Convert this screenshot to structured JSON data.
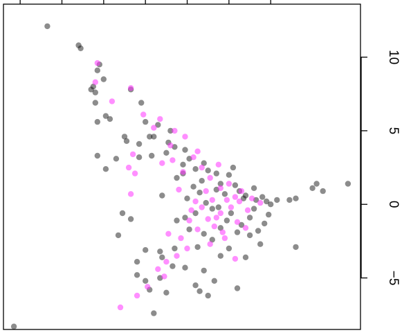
{
  "chart_data": {
    "type": "scatter",
    "title": "",
    "xlabel": "",
    "ylabel": "",
    "xlim": [
      -12.8,
      4.3
    ],
    "ylim": [
      -8.5,
      13.6
    ],
    "x_ticks_unlabeled": [
      -12,
      -10,
      -8,
      -6,
      -4,
      -2,
      0
    ],
    "y_ticks": [
      -5,
      0,
      5,
      10
    ],
    "y_tick_labels": [
      "−5",
      "0",
      "5",
      "10"
    ],
    "grid": false,
    "legend": "none",
    "series": [
      {
        "color": "#000000",
        "opacity": 0.45,
        "points": [
          [
            -10.7,
            12.1
          ],
          [
            -9.2,
            10.8
          ],
          [
            -9.1,
            10.6
          ],
          [
            -8.2,
            9.5
          ],
          [
            -8.0,
            8.5
          ],
          [
            -8.3,
            9.1
          ],
          [
            -8.5,
            8.0
          ],
          [
            -8.6,
            7.8
          ],
          [
            -8.4,
            7.6
          ],
          [
            -6.7,
            7.8
          ],
          [
            -6.2,
            6.9
          ],
          [
            -8.4,
            6.9
          ],
          [
            -7.9,
            6.0
          ],
          [
            -8.3,
            5.6
          ],
          [
            -7.7,
            5.8
          ],
          [
            -6.0,
            5.6
          ],
          [
            -5.4,
            5.4
          ],
          [
            -4.8,
            5.0
          ],
          [
            -5.8,
            4.6
          ],
          [
            -6.9,
            4.3
          ],
          [
            -7.0,
            4.6
          ],
          [
            -5.6,
            4.6
          ],
          [
            -6.3,
            4.1
          ],
          [
            -4.9,
            4.2
          ],
          [
            -4.6,
            3.9
          ],
          [
            -4.1,
            3.7
          ],
          [
            -5.0,
            3.5
          ],
          [
            -5.7,
            3.3
          ],
          [
            -6.3,
            3.2
          ],
          [
            -7.4,
            3.1
          ],
          [
            -7.9,
            2.4
          ],
          [
            -8.3,
            3.3
          ],
          [
            -4.2,
            2.7
          ],
          [
            -3.6,
            2.4
          ],
          [
            -3.0,
            2.3
          ],
          [
            -4.5,
            1.8
          ],
          [
            -3.3,
            1.6
          ],
          [
            -2.4,
            1.4
          ],
          [
            -2.0,
            2.0
          ],
          [
            -1.7,
            1.3
          ],
          [
            -1.5,
            0.9
          ],
          [
            -0.8,
            1.1
          ],
          [
            -0.4,
            0.5
          ],
          [
            -0.2,
            0.2
          ],
          [
            0.3,
            0.3
          ],
          [
            0.0,
            0.0
          ],
          [
            -0.7,
            0.3
          ],
          [
            -1.2,
            0.6
          ],
          [
            -2.6,
            1.0
          ],
          [
            -3.4,
            0.8
          ],
          [
            -4.0,
            0.4
          ],
          [
            -2.8,
            -0.3
          ],
          [
            -3.1,
            0.1
          ],
          [
            -3.6,
            -0.6
          ],
          [
            -4.1,
            -0.9
          ],
          [
            -4.5,
            -1.1
          ],
          [
            -2.4,
            -1.6
          ],
          [
            -1.6,
            -1.9
          ],
          [
            -1.0,
            -2.1
          ],
          [
            -2.8,
            -2.4
          ],
          [
            -3.5,
            -2.9
          ],
          [
            -4.6,
            -3.0
          ],
          [
            -5.3,
            -3.2
          ],
          [
            -6.0,
            -3.1
          ],
          [
            -6.4,
            -3.9
          ],
          [
            -5.2,
            -3.6
          ],
          [
            -4.7,
            -4.2
          ],
          [
            -4.1,
            -4.3
          ],
          [
            -3.2,
            -4.5
          ],
          [
            -2.7,
            -5.2
          ],
          [
            -3.6,
            -5.5
          ],
          [
            -5.3,
            -5.0
          ],
          [
            -6.0,
            -5.2
          ],
          [
            -6.4,
            -4.8
          ],
          [
            -5.8,
            -5.8
          ],
          [
            -5.0,
            -6.0
          ],
          [
            -1.6,
            -5.7
          ],
          [
            -3.0,
            -6.2
          ],
          [
            -3.4,
            -5.9
          ],
          [
            -5.6,
            -7.4
          ],
          [
            -12.3,
            -8.3
          ],
          [
            -7.3,
            -2.1
          ],
          [
            -6.7,
            -1.0
          ],
          [
            -7.1,
            -0.6
          ],
          [
            0.9,
            0.3
          ],
          [
            1.2,
            0.4
          ],
          [
            2.2,
            1.4
          ],
          [
            1.2,
            -2.9
          ],
          [
            2.5,
            0.9
          ],
          [
            2.0,
            1.1
          ],
          [
            3.7,
            1.4
          ],
          [
            -2.4,
            -3.5
          ],
          [
            -0.5,
            -2.7
          ],
          [
            -0.3,
            -1.3
          ],
          [
            -0.8,
            -0.3
          ],
          [
            -1.9,
            -0.6
          ],
          [
            -3.9,
            -1.7
          ],
          [
            -3.2,
            -2.0
          ],
          [
            -2.0,
            -3.0
          ],
          [
            -1.2,
            -3.6
          ],
          [
            -1.0,
            -0.9
          ],
          [
            -1.3,
            0.4
          ],
          [
            -2.2,
            0.7
          ],
          [
            -3.7,
            1.2
          ],
          [
            -4.2,
            2.1
          ],
          [
            -3.9,
            3.1
          ],
          [
            -3.2,
            2.8
          ],
          [
            -2.6,
            2.1
          ],
          [
            -1.8,
            2.5
          ],
          [
            -5.2,
            0.6
          ],
          [
            -2.1,
            -1.1
          ],
          [
            -2.5,
            -0.2
          ],
          [
            -1.4,
            -1.4
          ],
          [
            -0.6,
            -1.8
          ],
          [
            -0.1,
            -0.7
          ]
        ]
      },
      {
        "color": "#ff33ff",
        "opacity": 0.55,
        "points": [
          [
            -8.3,
            9.6
          ],
          [
            -8.4,
            8.3
          ],
          [
            -7.6,
            7.0
          ],
          [
            -6.7,
            7.9
          ],
          [
            -6.1,
            6.1
          ],
          [
            -5.6,
            5.2
          ],
          [
            -5.3,
            5.8
          ],
          [
            -4.6,
            5.0
          ],
          [
            -4.1,
            4.6
          ],
          [
            -3.5,
            3.6
          ],
          [
            -3.7,
            3.2
          ],
          [
            -4.7,
            3.0
          ],
          [
            -5.2,
            2.8
          ],
          [
            -6.6,
            3.4
          ],
          [
            -6.8,
            2.5
          ],
          [
            -4.2,
            2.2
          ],
          [
            -2.9,
            1.8
          ],
          [
            -2.0,
            1.4
          ],
          [
            -1.4,
            0.9
          ],
          [
            -0.9,
            0.4
          ],
          [
            -0.5,
            0.1
          ],
          [
            -1.7,
            0.5
          ],
          [
            -2.8,
            0.3
          ],
          [
            -3.3,
            -0.2
          ],
          [
            -2.4,
            -0.6
          ],
          [
            -3.9,
            -1.1
          ],
          [
            -3.5,
            -1.7
          ],
          [
            -2.7,
            -1.5
          ],
          [
            -1.6,
            -1.2
          ],
          [
            -1.2,
            -1.6
          ],
          [
            -2.2,
            -2.3
          ],
          [
            -2.9,
            -2.7
          ],
          [
            -4.0,
            -3.0
          ],
          [
            -4.5,
            -3.5
          ],
          [
            -5.0,
            -3.9
          ],
          [
            -5.4,
            -4.4
          ],
          [
            -5.1,
            -4.9
          ],
          [
            -5.9,
            -5.6
          ],
          [
            -6.4,
            -6.2
          ],
          [
            -7.2,
            -7.0
          ],
          [
            -4.9,
            -2.0
          ],
          [
            -1.7,
            -3.7
          ],
          [
            -6.5,
            2.1
          ],
          [
            -3.1,
            0.9
          ],
          [
            -2.4,
            1.1
          ],
          [
            -1.9,
            -0.2
          ],
          [
            -3.3,
            2.5
          ],
          [
            -4.4,
            1.0
          ],
          [
            -2.6,
            -0.9
          ],
          [
            -3.6,
            0.2
          ],
          [
            -2.1,
            0.3
          ],
          [
            -1.1,
            -0.4
          ],
          [
            -3.0,
            -1.0
          ],
          [
            -4.3,
            -2.3
          ],
          [
            -1.5,
            0.2
          ],
          [
            -2.5,
            2.7
          ],
          [
            -4.8,
            4.0
          ],
          [
            -6.7,
            0.7
          ],
          [
            -3.8,
            -0.4
          ],
          [
            -2.3,
            -1.9
          ]
        ]
      }
    ]
  }
}
